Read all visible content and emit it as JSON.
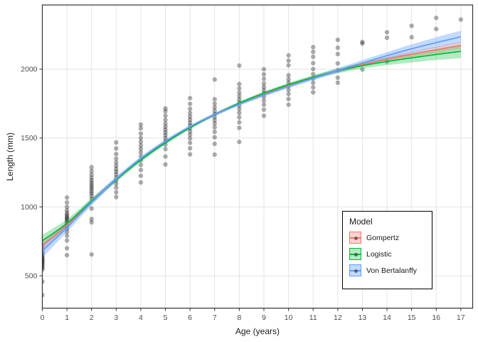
{
  "chart_data": {
    "type": "scatter",
    "title": "",
    "xlabel": "Age (years)",
    "ylabel": "Length (mm)",
    "x_ticks": [
      0,
      1,
      2,
      3,
      4,
      5,
      6,
      7,
      8,
      9,
      10,
      11,
      12,
      13,
      14,
      15,
      16,
      17
    ],
    "y_ticks": [
      500,
      1000,
      1500,
      2000
    ],
    "xlim": [
      0,
      17.48
    ],
    "ylim": [
      265,
      2466
    ],
    "grid": "major-only",
    "grid_color": "#e3e3e3",
    "panel_border_color": "#333333",
    "tick_label_color": "#4d4d4d",
    "point_color": "rgba(0,0,0,0.32)",
    "point_radius": 3.2,
    "points": [
      {
        "age": 0,
        "lengths": [
          360,
          458,
          545,
          556,
          566,
          576,
          585,
          594,
          602,
          610,
          618,
          626,
          634,
          643,
          653,
          665,
          680,
          700,
          725
        ]
      },
      {
        "age": 1,
        "lengths": [
          650,
          700,
          756,
          790,
          818,
          840,
          858,
          873,
          886,
          898,
          909,
          919,
          930,
          942,
          956,
          975,
          1000,
          1032,
          1068
        ]
      },
      {
        "age": 2,
        "lengths": [
          655,
          888,
          912,
          988,
          1058,
          1080,
          1098,
          1114,
          1130,
          1145,
          1160,
          1176,
          1193,
          1212,
          1234,
          1260,
          1288
        ]
      },
      {
        "age": 3,
        "lengths": [
          1072,
          1106,
          1140,
          1168,
          1192,
          1214,
          1236,
          1256,
          1276,
          1298,
          1322,
          1350,
          1384,
          1424,
          1468
        ]
      },
      {
        "age": 4,
        "lengths": [
          1178,
          1226,
          1268,
          1305,
          1338,
          1368,
          1396,
          1422,
          1447,
          1473,
          1500,
          1532,
          1570,
          1598
        ]
      },
      {
        "age": 5,
        "lengths": [
          1308,
          1366,
          1420,
          1452,
          1478,
          1500,
          1521,
          1541,
          1561,
          1582,
          1605,
          1632,
          1662,
          1694,
          1715
        ]
      },
      {
        "age": 6,
        "lengths": [
          1382,
          1426,
          1466,
          1498,
          1525,
          1549,
          1571,
          1591,
          1611,
          1633,
          1656,
          1682,
          1712,
          1748,
          1790
        ]
      },
      {
        "age": 7,
        "lengths": [
          1380,
          1458,
          1506,
          1545,
          1578,
          1606,
          1630,
          1652,
          1674,
          1697,
          1722,
          1750,
          1782,
          1925
        ]
      },
      {
        "age": 8,
        "lengths": [
          1472,
          1574,
          1614,
          1650,
          1682,
          1710,
          1734,
          1757,
          1780,
          1804,
          1830,
          1860,
          1892,
          2026
        ]
      },
      {
        "age": 9,
        "lengths": [
          1662,
          1706,
          1742,
          1772,
          1800,
          1824,
          1847,
          1870,
          1896,
          1930,
          1963,
          2000
        ]
      },
      {
        "age": 10,
        "lengths": [
          1742,
          1784,
          1820,
          1850,
          1877,
          1902,
          1927,
          1956,
          2028,
          2062,
          2100
        ]
      },
      {
        "age": 11,
        "lengths": [
          1832,
          1868,
          1901,
          1932,
          1964,
          2001,
          2044,
          2090,
          2126,
          2160
        ]
      },
      {
        "age": 12,
        "lengths": [
          1902,
          1938,
          1992,
          2042,
          2110,
          2156,
          2213
        ]
      },
      {
        "age": 13,
        "lengths": [
          1998,
          2186,
          2198
        ]
      },
      {
        "age": 14,
        "lengths": [
          2056,
          2228,
          2268
        ]
      },
      {
        "age": 15,
        "lengths": [
          2232,
          2315
        ]
      },
      {
        "age": 16,
        "lengths": [
          2292,
          2372
        ]
      },
      {
        "age": 17,
        "lengths": [
          2360
        ]
      }
    ],
    "series": [
      {
        "name": "Gompertz",
        "color": "#F8766D",
        "fill": "rgba(248,118,109,0.32)",
        "ages": [
          0,
          1,
          2,
          3,
          4,
          5,
          6,
          7,
          8,
          9,
          10,
          11,
          12,
          13,
          14,
          15,
          16,
          17
        ],
        "fit": [
          720,
          868,
          1040,
          1200,
          1345,
          1470,
          1578,
          1670,
          1750,
          1820,
          1882,
          1938,
          1988,
          2033,
          2072,
          2108,
          2141,
          2172
        ],
        "band_halfwidth": [
          35,
          25,
          18,
          14,
          12,
          11,
          10,
          10,
          10,
          10,
          11,
          12,
          13,
          15,
          17,
          20,
          24,
          28
        ]
      },
      {
        "name": "Logistic",
        "color": "#00BA38",
        "fill": "rgba(0,186,56,0.30)",
        "ages": [
          0,
          1,
          2,
          3,
          4,
          5,
          6,
          7,
          8,
          9,
          10,
          11,
          12,
          13,
          14,
          15,
          16,
          17
        ],
        "fit": [
          755,
          880,
          1042,
          1197,
          1340,
          1465,
          1575,
          1670,
          1754,
          1826,
          1888,
          1942,
          1988,
          2026,
          2056,
          2082,
          2107,
          2130
        ],
        "band_halfwidth": [
          42,
          30,
          21,
          16,
          14,
          12,
          11,
          11,
          11,
          12,
          13,
          15,
          18,
          22,
          27,
          33,
          41,
          50
        ]
      },
      {
        "name": "Von Bertalanffy",
        "color": "#619CFF",
        "fill": "rgba(97,156,255,0.38)",
        "ages": [
          0,
          1,
          2,
          3,
          4,
          5,
          6,
          7,
          8,
          9,
          10,
          11,
          12,
          13,
          14,
          15,
          16,
          17
        ],
        "fit": [
          680,
          850,
          1034,
          1203,
          1351,
          1476,
          1582,
          1670,
          1746,
          1813,
          1875,
          1934,
          1990,
          2045,
          2098,
          2148,
          2193,
          2235
        ],
        "band_halfwidth": [
          48,
          32,
          23,
          18,
          15,
          13,
          12,
          12,
          12,
          12,
          13,
          15,
          17,
          21,
          26,
          32,
          39,
          45
        ]
      }
    ],
    "legend": {
      "title": "Model",
      "position": "inside-right-bottom"
    }
  }
}
